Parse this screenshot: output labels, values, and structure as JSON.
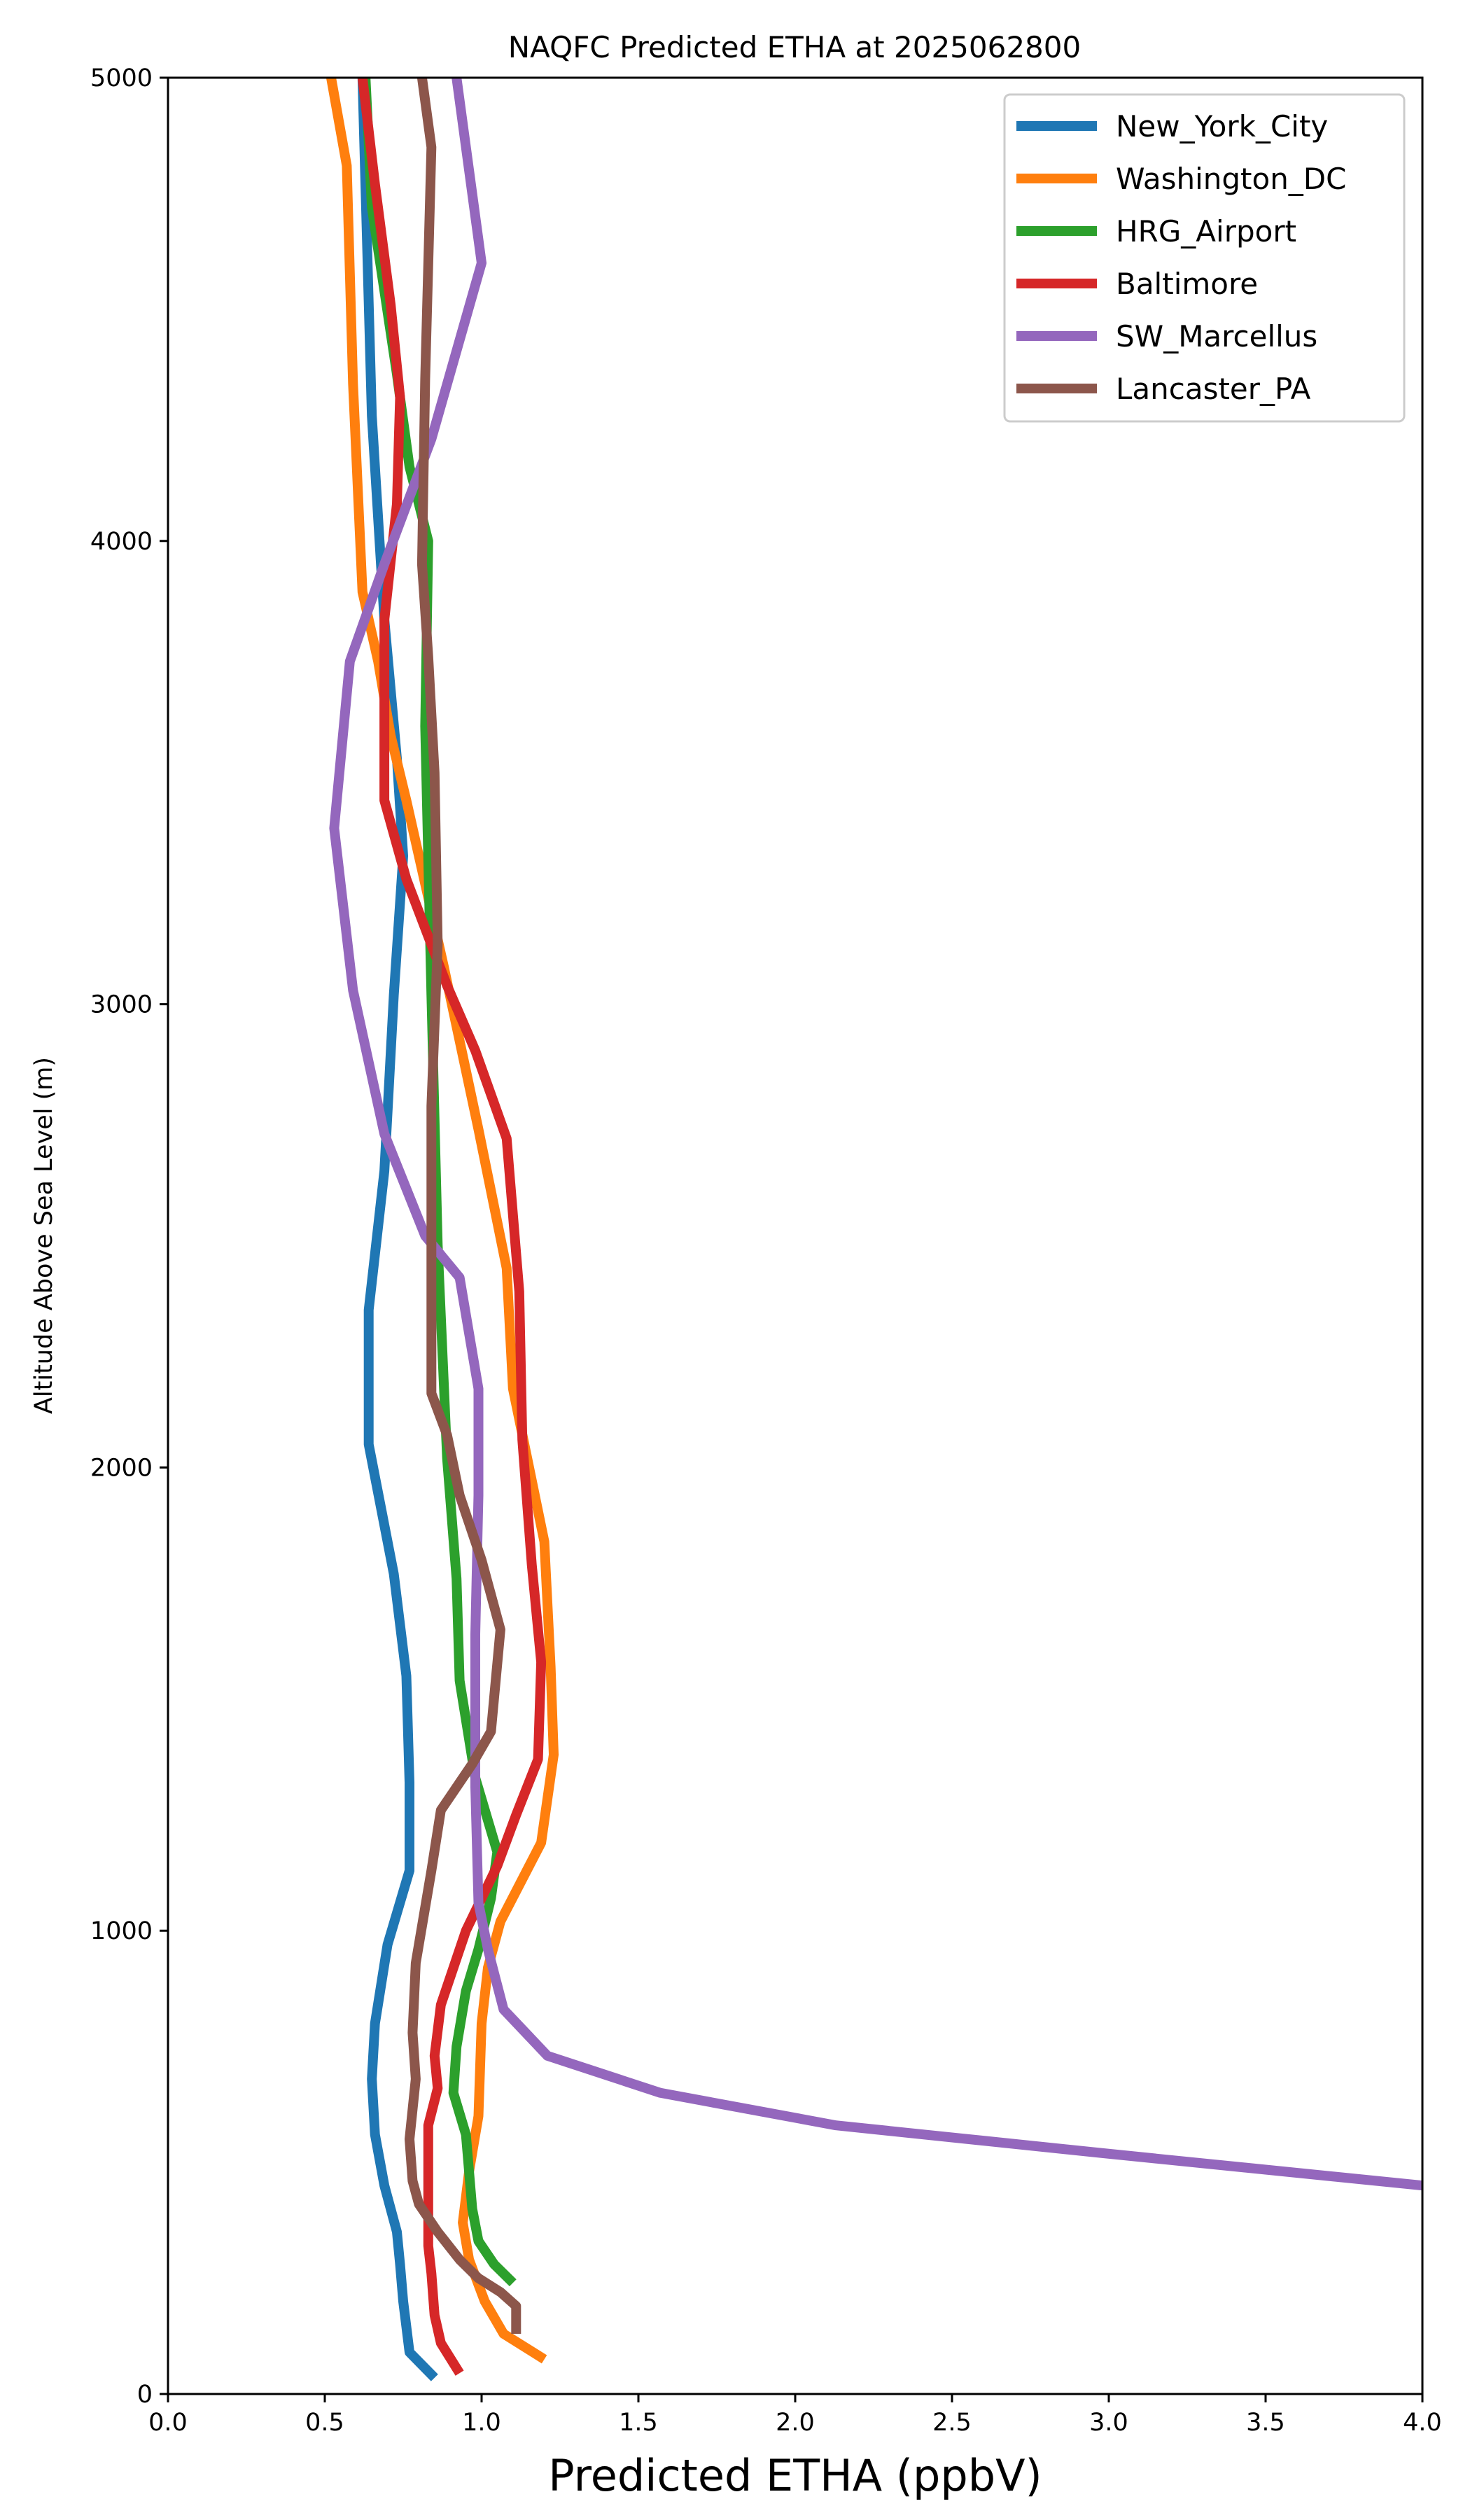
{
  "chart_data": {
    "type": "line",
    "title": "NAQFC Predicted ETHA at 2025062800",
    "xlabel": "Predicted ETHA (ppbV)",
    "ylabel": "Altitude Above Sea Level (m)",
    "xlim": [
      0.0,
      4.0
    ],
    "ylim": [
      0,
      5000
    ],
    "x_ticks": [
      "0.0",
      "0.5",
      "1.0",
      "1.5",
      "2.0",
      "2.5",
      "3.0",
      "3.5",
      "4.0"
    ],
    "y_ticks": [
      "0",
      "1000",
      "2000",
      "3000",
      "4000",
      "5000"
    ],
    "grid": false,
    "legend_position": "top-right",
    "series": [
      {
        "name": "New_York_City",
        "color": "#1f77b4",
        "points": [
          [
            0.85,
            35
          ],
          [
            0.77,
            90
          ],
          [
            0.75,
            200
          ],
          [
            0.74,
            280
          ],
          [
            0.73,
            350
          ],
          [
            0.69,
            450
          ],
          [
            0.66,
            560
          ],
          [
            0.65,
            680
          ],
          [
            0.66,
            800
          ],
          [
            0.7,
            970
          ],
          [
            0.77,
            1130
          ],
          [
            0.77,
            1320
          ],
          [
            0.76,
            1550
          ],
          [
            0.72,
            1770
          ],
          [
            0.64,
            2050
          ],
          [
            0.64,
            2340
          ],
          [
            0.69,
            2640
          ],
          [
            0.72,
            3020
          ],
          [
            0.75,
            3320
          ],
          [
            0.73,
            3530
          ],
          [
            0.69,
            3830
          ],
          [
            0.65,
            4270
          ],
          [
            0.63,
            4760
          ],
          [
            0.62,
            5000
          ]
        ]
      },
      {
        "name": "Washington_DC",
        "color": "#ff7f0e",
        "points": [
          [
            1.2,
            75
          ],
          [
            1.07,
            130
          ],
          [
            1.01,
            200
          ],
          [
            0.96,
            290
          ],
          [
            0.94,
            370
          ],
          [
            0.96,
            480
          ],
          [
            0.99,
            600
          ],
          [
            1.0,
            800
          ],
          [
            1.02,
            920
          ],
          [
            1.06,
            1020
          ],
          [
            1.19,
            1190
          ],
          [
            1.23,
            1380
          ],
          [
            1.22,
            1570
          ],
          [
            1.2,
            1840
          ],
          [
            1.1,
            2170
          ],
          [
            1.08,
            2430
          ],
          [
            0.99,
            2730
          ],
          [
            0.88,
            3080
          ],
          [
            0.76,
            3440
          ],
          [
            0.71,
            3580
          ],
          [
            0.67,
            3740
          ],
          [
            0.62,
            3890
          ],
          [
            0.59,
            4340
          ],
          [
            0.57,
            4810
          ],
          [
            0.52,
            5000
          ]
        ]
      },
      {
        "name": "HRG_Airport",
        "color": "#2ca02c",
        "points": [
          [
            1.1,
            240
          ],
          [
            1.04,
            280
          ],
          [
            0.99,
            330
          ],
          [
            0.97,
            400
          ],
          [
            0.96,
            480
          ],
          [
            0.95,
            560
          ],
          [
            0.91,
            650
          ],
          [
            0.92,
            750
          ],
          [
            0.95,
            870
          ],
          [
            0.99,
            960
          ],
          [
            1.03,
            1070
          ],
          [
            1.05,
            1170
          ],
          [
            0.98,
            1330
          ],
          [
            0.93,
            1540
          ],
          [
            0.92,
            1760
          ],
          [
            0.89,
            2020
          ],
          [
            0.86,
            2480
          ],
          [
            0.84,
            3020
          ],
          [
            0.82,
            3600
          ],
          [
            0.83,
            4000
          ],
          [
            0.77,
            4160
          ],
          [
            0.73,
            4360
          ],
          [
            0.65,
            4720
          ],
          [
            0.63,
            5000
          ]
        ]
      },
      {
        "name": "Baltimore",
        "color": "#d62728",
        "points": [
          [
            0.93,
            45
          ],
          [
            0.87,
            110
          ],
          [
            0.85,
            170
          ],
          [
            0.84,
            260
          ],
          [
            0.83,
            320
          ],
          [
            0.83,
            430
          ],
          [
            0.83,
            580
          ],
          [
            0.86,
            660
          ],
          [
            0.85,
            730
          ],
          [
            0.87,
            840
          ],
          [
            0.95,
            1000
          ],
          [
            1.05,
            1140
          ],
          [
            1.11,
            1250
          ],
          [
            1.18,
            1370
          ],
          [
            1.19,
            1580
          ],
          [
            1.16,
            1790
          ],
          [
            1.13,
            2060
          ],
          [
            1.12,
            2380
          ],
          [
            1.08,
            2710
          ],
          [
            0.98,
            2900
          ],
          [
            0.89,
            3040
          ],
          [
            0.76,
            3270
          ],
          [
            0.69,
            3440
          ],
          [
            0.69,
            3620
          ],
          [
            0.69,
            3830
          ],
          [
            0.73,
            4080
          ],
          [
            0.74,
            4310
          ],
          [
            0.71,
            4510
          ],
          [
            0.66,
            4770
          ],
          [
            0.62,
            5000
          ]
        ]
      },
      {
        "name": "SW_Marcellus",
        "color": "#9467bd",
        "points": [
          [
            4.0,
            450
          ],
          [
            2.98,
            520
          ],
          [
            2.13,
            580
          ],
          [
            1.57,
            650
          ],
          [
            1.21,
            730
          ],
          [
            1.07,
            830
          ],
          [
            1.02,
            960
          ],
          [
            0.99,
            1060
          ],
          [
            0.98,
            1310
          ],
          [
            0.98,
            1640
          ],
          [
            0.99,
            1940
          ],
          [
            0.99,
            2170
          ],
          [
            0.93,
            2410
          ],
          [
            0.82,
            2500
          ],
          [
            0.69,
            2720
          ],
          [
            0.59,
            3030
          ],
          [
            0.53,
            3380
          ],
          [
            0.58,
            3740
          ],
          [
            0.69,
            3950
          ],
          [
            0.84,
            4220
          ],
          [
            1.0,
            4600
          ],
          [
            0.92,
            5000
          ]
        ]
      },
      {
        "name": "Lancaster_PA",
        "color": "#8c564b",
        "points": [
          [
            1.11,
            130
          ],
          [
            1.11,
            190
          ],
          [
            1.06,
            220
          ],
          [
            0.99,
            250
          ],
          [
            0.93,
            290
          ],
          [
            0.86,
            350
          ],
          [
            0.8,
            410
          ],
          [
            0.78,
            460
          ],
          [
            0.77,
            550
          ],
          [
            0.79,
            680
          ],
          [
            0.78,
            780
          ],
          [
            0.79,
            930
          ],
          [
            0.84,
            1130
          ],
          [
            0.87,
            1260
          ],
          [
            0.97,
            1360
          ],
          [
            1.03,
            1430
          ],
          [
            1.06,
            1650
          ],
          [
            1.0,
            1800
          ],
          [
            0.93,
            1940
          ],
          [
            0.89,
            2070
          ],
          [
            0.84,
            2160
          ],
          [
            0.84,
            2480
          ],
          [
            0.84,
            2780
          ],
          [
            0.86,
            3130
          ],
          [
            0.85,
            3500
          ],
          [
            0.83,
            3750
          ],
          [
            0.81,
            3950
          ],
          [
            0.82,
            4350
          ],
          [
            0.84,
            4850
          ],
          [
            0.81,
            5000
          ]
        ]
      }
    ]
  }
}
